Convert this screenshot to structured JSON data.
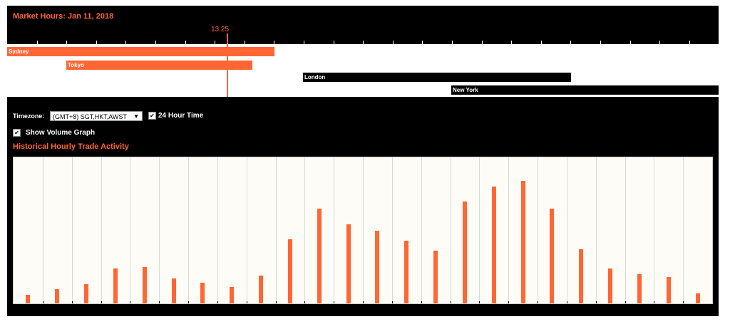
{
  "header": {
    "title": "Market Hours: Jan 11, 2018",
    "current_time": "13.25"
  },
  "sessions": [
    {
      "name": "Sydney",
      "color": "#ff6633"
    },
    {
      "name": "Tokyo",
      "color": "#ff6633"
    },
    {
      "name": "London",
      "color": "#000000"
    },
    {
      "name": "New York",
      "color": "#000000"
    }
  ],
  "controls": {
    "timezone_label": "Timezone:",
    "timezone_value": "(GMT+8) SGT,HKT,AWST",
    "hour24_label": "24 Hour Time",
    "hour24_checked": true,
    "volume_label": "Show Volume Graph",
    "volume_checked": true
  },
  "chart_title": "Historical Hourly Trade Activity",
  "chart_data": {
    "type": "bar",
    "title": "Historical Hourly Trade Activity",
    "values": [
      6,
      10,
      13,
      24,
      25,
      17,
      14,
      11,
      19,
      44,
      65,
      54,
      50,
      43,
      36,
      70,
      80,
      84,
      65,
      37,
      24,
      20,
      18,
      7
    ],
    "ylim": [
      0,
      100
    ],
    "color": "#ff6633"
  }
}
